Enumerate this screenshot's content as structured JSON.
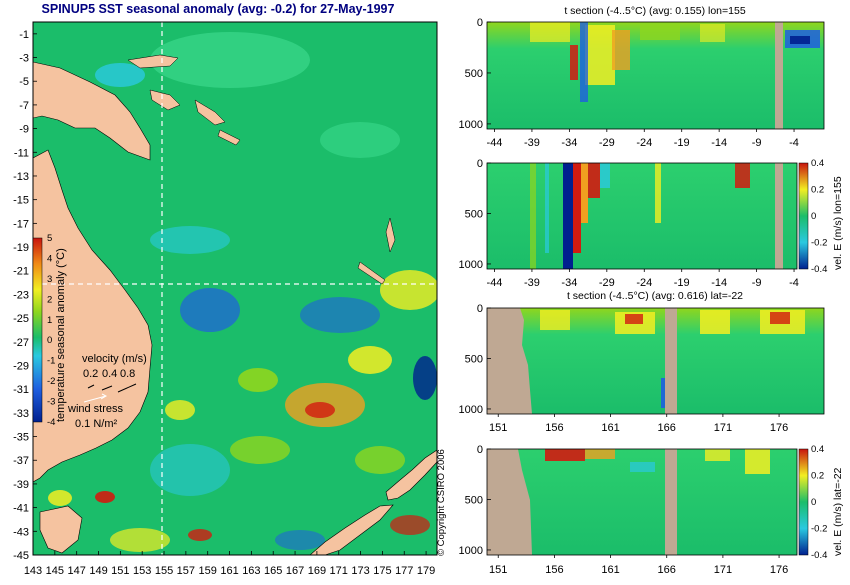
{
  "title": "SPINUP5 SST seasonal anomaly (avg: -0.2) for 27-May-1997",
  "copyright": "© Copyright CSIRO 2006",
  "colors": {
    "ocean": "#1bbd6a",
    "land": "#f5c3a0",
    "gray_land": "#bfa893",
    "deep_blue": "#00208f",
    "red": "#d21b10",
    "yellow": "#f2ee22"
  },
  "chart_data": [
    {
      "type": "heatmap",
      "id": "sst_map",
      "title": "SPINUP5 SST seasonal anomaly (avg: -0.2) for 27-May-1997",
      "lon_ticks": [
        "143",
        "145",
        "147",
        "149",
        "151",
        "153",
        "155",
        "157",
        "159",
        "161",
        "163",
        "165",
        "167",
        "169",
        "171",
        "173",
        "175",
        "177",
        "179"
      ],
      "lat_ticks": [
        "-1",
        "-3",
        "-5",
        "-7",
        "-9",
        "-11",
        "-13",
        "-15",
        "-17",
        "-19",
        "-21",
        "-23",
        "-25",
        "-27",
        "-29",
        "-31",
        "-33",
        "-35",
        "-37",
        "-39",
        "-41",
        "-43",
        "-45"
      ],
      "xlim": [
        143,
        180
      ],
      "ylim": [
        -45,
        0
      ],
      "colorbar": {
        "label": "temperature seasonal anomaly (°C)",
        "ticks": [
          "5",
          "4",
          "3",
          "2",
          "1",
          "0",
          "-1",
          "-2",
          "-3",
          "-4"
        ],
        "range": [
          -4,
          5
        ]
      },
      "legend": {
        "velocity_label": "velocity (m/s)",
        "velocity_values": [
          "0.2",
          "0.4",
          "0.8"
        ],
        "wind_label": "wind stress",
        "wind_value": "0.1 N/m²"
      },
      "section_lines": {
        "lon": 155,
        "lat": -22
      }
    },
    {
      "type": "heatmap",
      "id": "t_section_lon",
      "title": "t section (-4..5°C) (avg: 0.155) lon=155",
      "x_ticks": [
        "-44",
        "-39",
        "-34",
        "-29",
        "-24",
        "-19",
        "-14",
        "-9",
        "-4"
      ],
      "y_ticks": [
        "0",
        "500",
        "1000"
      ],
      "xlim": [
        -45,
        0
      ],
      "ylim": [
        1050,
        0
      ]
    },
    {
      "type": "heatmap",
      "id": "vel_e_lon",
      "x_ticks": [
        "-44",
        "-39",
        "-34",
        "-29",
        "-24",
        "-19",
        "-14",
        "-9",
        "-4"
      ],
      "y_ticks": [
        "0",
        "500",
        "1000"
      ],
      "xlim": [
        -45,
        0
      ],
      "ylim": [
        1050,
        0
      ],
      "colorbar": {
        "label": "vel. E (m/s) lon=155",
        "ticks": [
          "0.4",
          "0.2",
          "0",
          "-0.2",
          "-0.4"
        ],
        "range": [
          -0.4,
          0.4
        ]
      }
    },
    {
      "type": "heatmap",
      "id": "t_section_lat",
      "title": "t section (-4..5°C) (avg: 0.616) lat=-22",
      "x_ticks": [
        "151",
        "156",
        "161",
        "166",
        "171",
        "176"
      ],
      "y_ticks": [
        "0",
        "500",
        "1000"
      ],
      "xlim": [
        150,
        180
      ],
      "ylim": [
        1050,
        0
      ]
    },
    {
      "type": "heatmap",
      "id": "vel_e_lat",
      "x_ticks": [
        "151",
        "156",
        "161",
        "166",
        "171",
        "176"
      ],
      "y_ticks": [
        "0",
        "500",
        "1000"
      ],
      "xlim": [
        150,
        180
      ],
      "ylim": [
        1050,
        0
      ],
      "colorbar": {
        "label": "vel. E (m/s) lat=-22",
        "ticks": [
          "0.4",
          "0.2",
          "0",
          "-0.2",
          "-0.4"
        ],
        "range": [
          -0.4,
          0.4
        ]
      }
    }
  ]
}
